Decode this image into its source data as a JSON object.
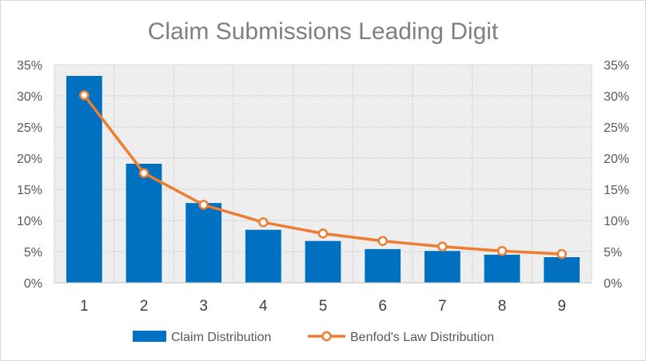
{
  "chart_data": {
    "type": "bar",
    "title": "Claim Submissions Leading Digit",
    "categories": [
      "1",
      "2",
      "3",
      "4",
      "5",
      "6",
      "7",
      "8",
      "9"
    ],
    "series": [
      {
        "name": "Claim Distribution",
        "type": "bar",
        "color": "#0070c0",
        "values": [
          33.2,
          19.1,
          12.8,
          8.5,
          6.7,
          5.4,
          5.1,
          4.5,
          4.1
        ]
      },
      {
        "name": "Benfod's Law Distribution",
        "type": "line",
        "color": "#ed7d31",
        "values": [
          30.1,
          17.6,
          12.5,
          9.7,
          7.9,
          6.7,
          5.8,
          5.1,
          4.6
        ]
      }
    ],
    "ylim": [
      0,
      35
    ],
    "y_ticks": [
      "0%",
      "5%",
      "10%",
      "15%",
      "20%",
      "25%",
      "30%",
      "35%"
    ],
    "y2_ticks": [
      "0%",
      "5%",
      "10%",
      "15%",
      "20%",
      "25%",
      "30%",
      "35%"
    ],
    "grid": true,
    "legend_position": "bottom"
  }
}
